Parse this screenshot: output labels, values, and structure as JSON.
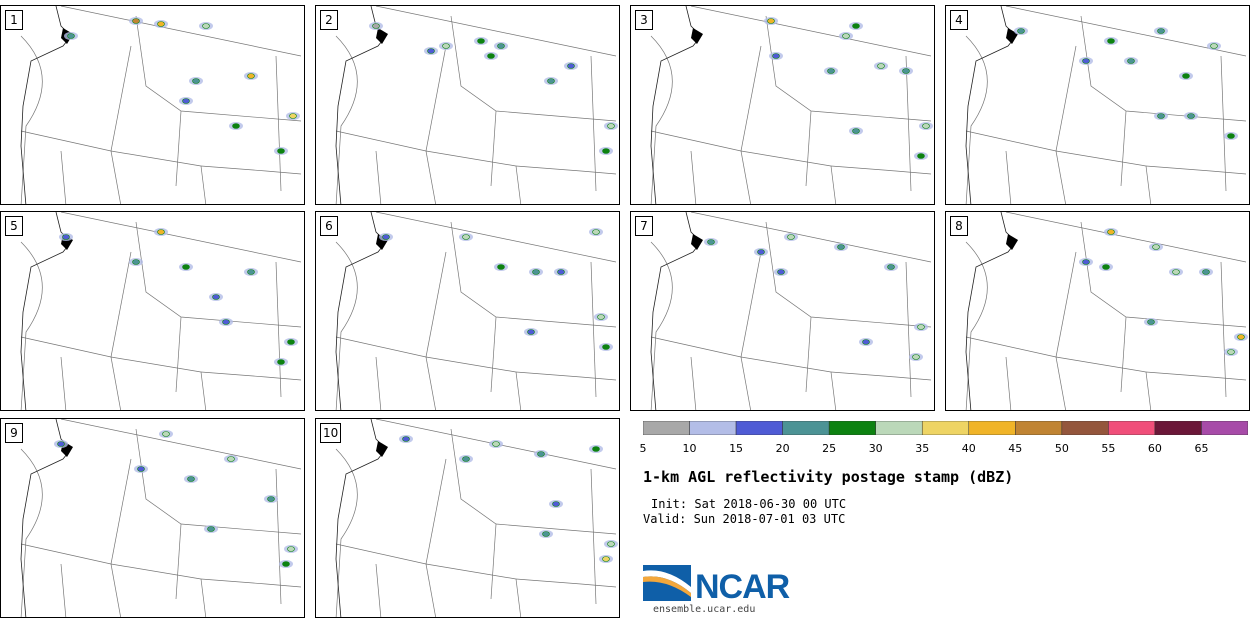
{
  "panels": [
    {
      "label": "1",
      "cells": [
        [
          135,
          15,
          "45"
        ],
        [
          160,
          18,
          "40"
        ],
        [
          205,
          20,
          "30"
        ],
        [
          250,
          70,
          "40"
        ],
        [
          235,
          120,
          "25"
        ],
        [
          292,
          110,
          "35"
        ],
        [
          280,
          145,
          "25"
        ],
        [
          70,
          30,
          "20"
        ],
        [
          195,
          75,
          "20"
        ],
        [
          185,
          95,
          "15"
        ]
      ]
    },
    {
      "label": "2",
      "cells": [
        [
          115,
          45,
          "15"
        ],
        [
          130,
          40,
          "30"
        ],
        [
          165,
          35,
          "25"
        ],
        [
          185,
          40,
          "20"
        ],
        [
          175,
          50,
          "25"
        ],
        [
          295,
          120,
          "30"
        ],
        [
          290,
          145,
          "25"
        ],
        [
          60,
          20,
          "5"
        ],
        [
          235,
          75,
          "20"
        ],
        [
          255,
          60,
          "15"
        ]
      ]
    },
    {
      "label": "3",
      "cells": [
        [
          140,
          15,
          "40"
        ],
        [
          215,
          30,
          "30"
        ],
        [
          225,
          20,
          "25"
        ],
        [
          250,
          60,
          "30"
        ],
        [
          295,
          120,
          "30"
        ],
        [
          290,
          150,
          "25"
        ],
        [
          145,
          50,
          "15"
        ],
        [
          200,
          65,
          "20"
        ],
        [
          225,
          125,
          "20"
        ],
        [
          275,
          65,
          "20"
        ]
      ]
    },
    {
      "label": "4",
      "cells": [
        [
          75,
          25,
          "20"
        ],
        [
          165,
          35,
          "25"
        ],
        [
          140,
          55,
          "15"
        ],
        [
          185,
          55,
          "20"
        ],
        [
          240,
          70,
          "25"
        ],
        [
          268,
          40,
          "30"
        ],
        [
          285,
          130,
          "25"
        ],
        [
          215,
          110,
          "20"
        ],
        [
          245,
          110,
          "20"
        ],
        [
          215,
          25,
          "20"
        ]
      ]
    },
    {
      "label": "5",
      "cells": [
        [
          65,
          25,
          "15"
        ],
        [
          160,
          20,
          "40"
        ],
        [
          185,
          55,
          "25"
        ],
        [
          250,
          60,
          "20"
        ],
        [
          290,
          130,
          "25"
        ],
        [
          280,
          150,
          "25"
        ],
        [
          215,
          85,
          "15"
        ],
        [
          225,
          110,
          "15"
        ],
        [
          135,
          50,
          "20"
        ]
      ]
    },
    {
      "label": "6",
      "cells": [
        [
          70,
          25,
          "15"
        ],
        [
          150,
          25,
          "30"
        ],
        [
          185,
          55,
          "25"
        ],
        [
          220,
          60,
          "20"
        ],
        [
          285,
          105,
          "30"
        ],
        [
          290,
          135,
          "25"
        ],
        [
          245,
          60,
          "15"
        ],
        [
          215,
          120,
          "15"
        ],
        [
          280,
          20,
          "30"
        ]
      ]
    },
    {
      "label": "7",
      "cells": [
        [
          80,
          30,
          "20"
        ],
        [
          130,
          40,
          "15"
        ],
        [
          160,
          25,
          "30"
        ],
        [
          210,
          35,
          "20"
        ],
        [
          260,
          55,
          "20"
        ],
        [
          290,
          115,
          "30"
        ],
        [
          285,
          145,
          "30"
        ],
        [
          235,
          130,
          "15"
        ],
        [
          150,
          60,
          "15"
        ]
      ]
    },
    {
      "label": "8",
      "cells": [
        [
          140,
          50,
          "15"
        ],
        [
          160,
          55,
          "25"
        ],
        [
          165,
          20,
          "40"
        ],
        [
          210,
          35,
          "30"
        ],
        [
          230,
          60,
          "30"
        ],
        [
          295,
          125,
          "40"
        ],
        [
          285,
          140,
          "30"
        ],
        [
          205,
          110,
          "20"
        ],
        [
          260,
          60,
          "20"
        ]
      ]
    },
    {
      "label": "9",
      "cells": [
        [
          60,
          25,
          "15"
        ],
        [
          140,
          50,
          "15"
        ],
        [
          165,
          15,
          "30"
        ],
        [
          190,
          60,
          "20"
        ],
        [
          230,
          40,
          "30"
        ],
        [
          290,
          130,
          "30"
        ],
        [
          285,
          145,
          "25"
        ],
        [
          210,
          110,
          "20"
        ],
        [
          270,
          80,
          "20"
        ]
      ]
    },
    {
      "label": "10",
      "cells": [
        [
          90,
          20,
          "15"
        ],
        [
          150,
          40,
          "20"
        ],
        [
          180,
          25,
          "30"
        ],
        [
          225,
          35,
          "20"
        ],
        [
          280,
          30,
          "25"
        ],
        [
          295,
          125,
          "30"
        ],
        [
          290,
          140,
          "35"
        ],
        [
          240,
          85,
          "15"
        ],
        [
          230,
          115,
          "20"
        ]
      ]
    }
  ],
  "colorbar": {
    "bins": [
      {
        "v": "5",
        "c": "#a8a8a8"
      },
      {
        "v": "10",
        "c": "#b3bde7"
      },
      {
        "v": "15",
        "c": "#4f5bd5"
      },
      {
        "v": "20",
        "c": "#4c9395"
      },
      {
        "v": "25",
        "c": "#0d8211"
      },
      {
        "v": "30",
        "c": "#bbd8b9"
      },
      {
        "v": "35",
        "c": "#eed464"
      },
      {
        "v": "40",
        "c": "#f0b428"
      },
      {
        "v": "45",
        "c": "#c08433"
      },
      {
        "v": "50",
        "c": "#94563c"
      },
      {
        "v": "55",
        "c": "#f04f7a"
      },
      {
        "v": "60",
        "c": "#6b1738"
      },
      {
        "v": "65",
        "c": "#a74ba8"
      }
    ],
    "ticks": [
      "5",
      "10",
      "15",
      "20",
      "25",
      "30",
      "35",
      "40",
      "45",
      "50",
      "55",
      "60",
      "65"
    ]
  },
  "title": "1-km AGL reflectivity postage stamp (dBZ)",
  "init": "Init: Sat 2018-06-30 00 UTC",
  "valid": "Valid: Sun 2018-07-01 03 UTC",
  "logo": {
    "text": "NCAR",
    "url": "ensemble.ucar.edu"
  }
}
